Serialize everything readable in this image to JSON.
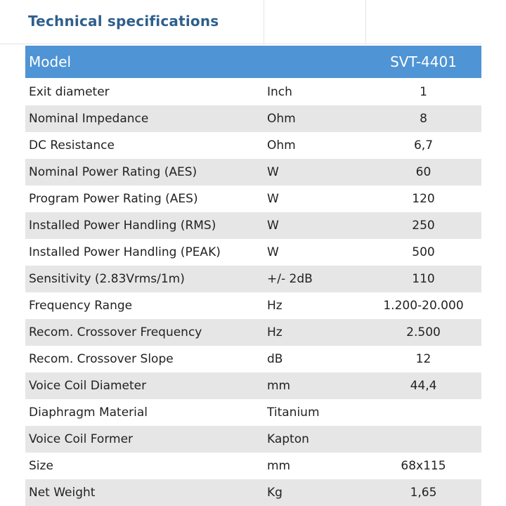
{
  "title": "Technical specifications",
  "header": {
    "label": "Model",
    "value": "SVT-4401"
  },
  "rows": [
    [
      "Exit diameter",
      "Inch",
      "1"
    ],
    [
      "Nominal Impedance",
      "Ohm",
      "8"
    ],
    [
      "DC Resistance",
      "Ohm",
      "6,7"
    ],
    [
      "Nominal Power Rating (AES)",
      "W",
      "60"
    ],
    [
      "Program Power Rating (AES)",
      "W",
      "120"
    ],
    [
      "Installed Power Handling (RMS)",
      "W",
      "250"
    ],
    [
      "Installed Power Handling (PEAK)",
      "W",
      "500"
    ],
    [
      "Sensitivity (2.83Vrms/1m)",
      "+/- 2dB",
      "110"
    ],
    [
      "Frequency Range",
      "Hz",
      "1.200-20.000"
    ],
    [
      "Recom. Crossover Frequency",
      "Hz",
      "2.500"
    ],
    [
      "Recom. Crossover Slope",
      "dB",
      "12"
    ],
    [
      "Voice Coil Diameter",
      "mm",
      "44,4"
    ],
    [
      "Diaphragm Material",
      "Titanium"
    ],
    [
      "Voice Coil Former",
      "Kapton"
    ],
    [
      "Size",
      "mm",
      "68x115"
    ],
    [
      "Net Weight",
      "Kg",
      "1,65"
    ]
  ]
}
